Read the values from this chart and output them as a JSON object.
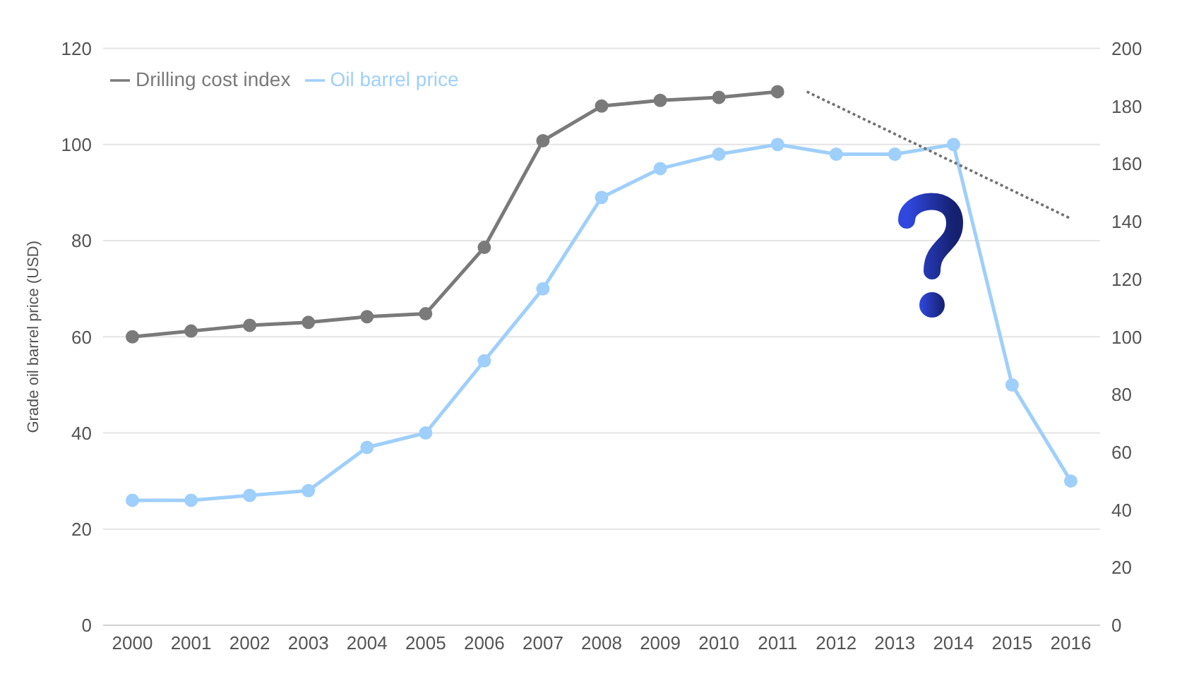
{
  "chart_data": {
    "type": "line",
    "ylabel": "Grade oil barrel price (USD)",
    "x": [
      2000,
      2001,
      2002,
      2003,
      2004,
      2005,
      2006,
      2007,
      2008,
      2009,
      2010,
      2011,
      2012,
      2013,
      2014,
      2015,
      2016
    ],
    "xlim": [
      1999.5,
      2016.5
    ],
    "xticks": [
      2000,
      2001,
      2002,
      2003,
      2004,
      2005,
      2006,
      2007,
      2008,
      2009,
      2010,
      2011,
      2012,
      2013,
      2014,
      2015,
      2016
    ],
    "ylim": [
      0,
      120
    ],
    "yticks": [
      0,
      20,
      40,
      60,
      80,
      100,
      120
    ],
    "y2lim": [
      0,
      200
    ],
    "y2ticks": [
      0,
      20,
      40,
      60,
      80,
      100,
      120,
      140,
      160,
      180,
      200
    ],
    "series": [
      {
        "name": "Oil barrel price",
        "color": "#9fcffb",
        "values": [
          26,
          26,
          27,
          28,
          37,
          40,
          55,
          70,
          89,
          95,
          98,
          100,
          98,
          98,
          100,
          50,
          30
        ]
      },
      {
        "name": "Drilling cost index",
        "color": "#7a7a7a",
        "axis": "y2",
        "values": [
          100,
          102,
          104,
          105,
          107,
          108,
          131,
          168,
          180,
          182,
          183,
          185,
          null,
          null,
          null,
          null,
          null
        ]
      },
      {
        "color": "#707070",
        "axis": "y2",
        "x": [
          2011.5,
          2016
        ],
        "values": [
          185,
          141
        ],
        "marker": "none",
        "line_style": "dotted"
      }
    ],
    "grid": "y",
    "legend": "top left",
    "marker": "circle",
    "line_style": "solid"
  }
}
